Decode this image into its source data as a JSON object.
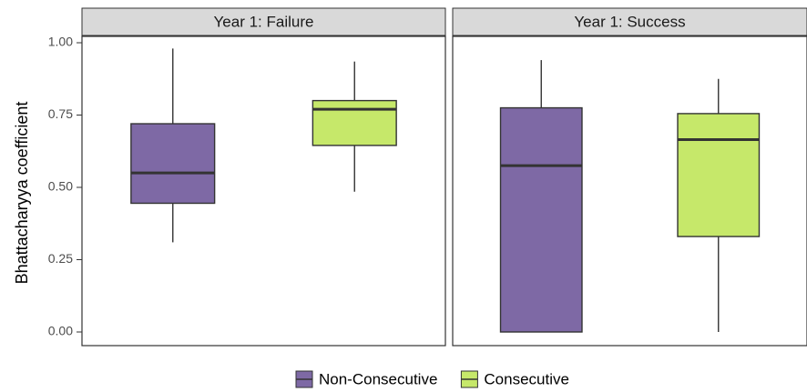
{
  "chart_data": {
    "type": "boxplot",
    "ylabel": "Bhattacharyya coefficient",
    "xlabel": "",
    "ylim": [
      0,
      1.05
    ],
    "yticks": [
      "0.00",
      "0.25",
      "0.50",
      "0.75",
      "1.00"
    ],
    "ytick_values": [
      0,
      0.25,
      0.5,
      0.75,
      1.0
    ],
    "legend_placement": "bottom",
    "legend": [
      {
        "name": "Non-Consecutive",
        "color": "#7E69A5"
      },
      {
        "name": "Consecutive",
        "color": "#C6E86A"
      }
    ],
    "panels": [
      {
        "title": "Year 1: Failure",
        "boxes": [
          {
            "group": "Non-Consecutive",
            "min": 0.31,
            "q1": 0.445,
            "median": 0.55,
            "q3": 0.72,
            "max": 0.98
          },
          {
            "group": "Consecutive",
            "min": 0.485,
            "q1": 0.645,
            "median": 0.77,
            "q3": 0.8,
            "max": 0.935
          }
        ]
      },
      {
        "title": "Year 1: Success",
        "boxes": [
          {
            "group": "Non-Consecutive",
            "min": 0.0,
            "q1": 0.0,
            "median": 0.575,
            "q3": 0.775,
            "max": 0.94
          },
          {
            "group": "Consecutive",
            "min": 0.0,
            "q1": 0.33,
            "median": 0.665,
            "q3": 0.755,
            "max": 0.875
          }
        ]
      }
    ]
  }
}
